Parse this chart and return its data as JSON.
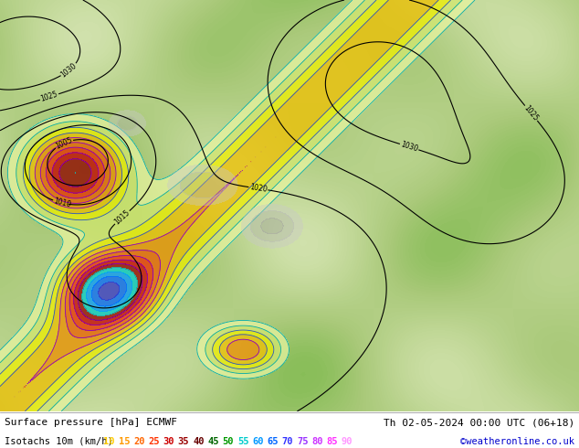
{
  "title_left": "Surface pressure [hPa] ECMWF",
  "title_right": "Th 02-05-2024 00:00 UTC (06+18)",
  "legend_label": "Isotachs 10m (km/h)",
  "copyright": "©weatheronline.co.uk",
  "isotach_values": [
    "10",
    "15",
    "20",
    "25",
    "30",
    "35",
    "40",
    "45",
    "50",
    "55",
    "60",
    "65",
    "70",
    "75",
    "80",
    "85",
    "90"
  ],
  "isotach_colors": [
    "#ffcc00",
    "#ff9900",
    "#ff6600",
    "#ff3300",
    "#cc0000",
    "#990000",
    "#660000",
    "#006600",
    "#009900",
    "#00cccc",
    "#0099ff",
    "#0066ff",
    "#3333ff",
    "#9933ff",
    "#cc33ff",
    "#ff33ff",
    "#ff99ff"
  ],
  "map_bg_color": "#a8c878",
  "legend_bg_color": "#ffffff",
  "fig_width": 6.34,
  "fig_height": 4.9,
  "dpi": 100,
  "title_fontsize": 8.0,
  "legend_fontsize": 7.5,
  "copyright_color": "#0000cc"
}
